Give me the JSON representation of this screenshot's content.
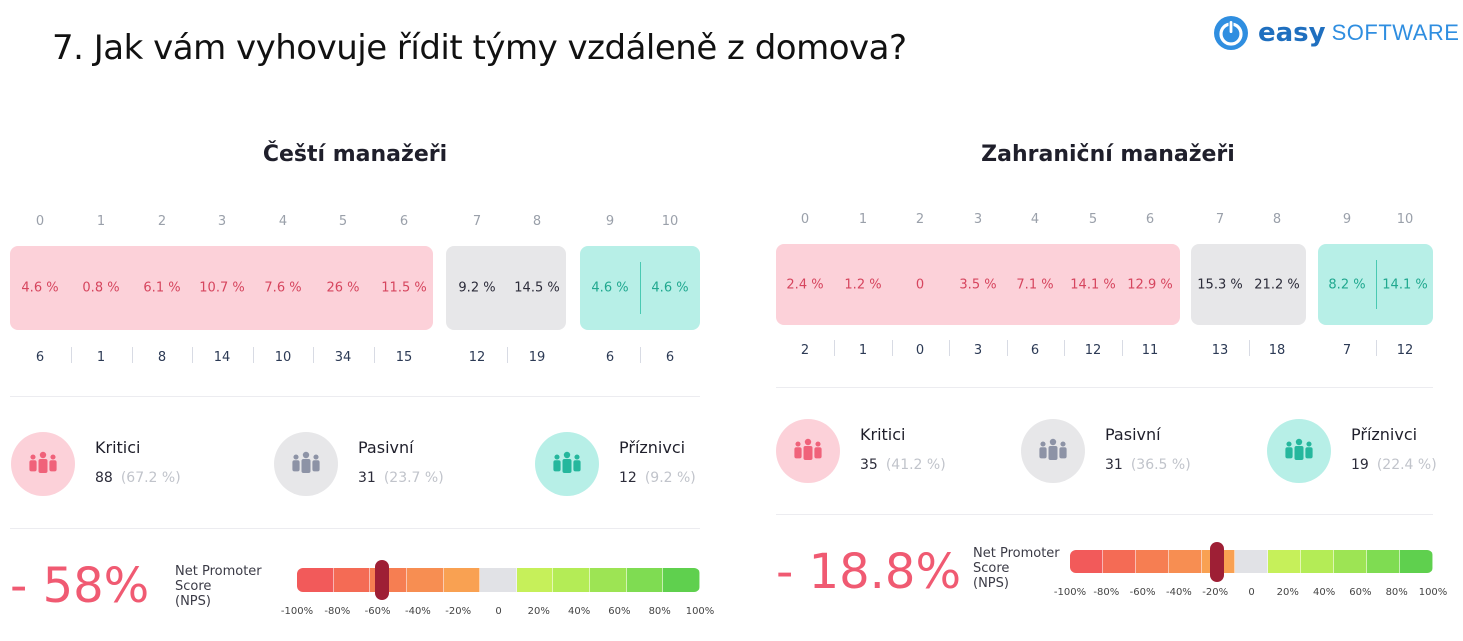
{
  "title": "7. Jak vám vyhovuje řídit týmy vzdáleně z domova?",
  "logo": {
    "word1": "easy",
    "word2": "SOFTWARE",
    "icon": "easy-power-icon"
  },
  "colors": {
    "detractor": "#fcd1d9",
    "passive": "#e7e7e9",
    "promoter": "#b7efe7",
    "nps": "#f05a72",
    "marker": "#9e1f35"
  },
  "gauge": {
    "tick_labels": [
      "-100%",
      "-80%",
      "-60%",
      "-40%",
      "-20%",
      "0",
      "20%",
      "40%",
      "60%",
      "80%",
      "100%"
    ],
    "segment_colors": [
      "#f25a5a",
      "#f46b55",
      "#f67e52",
      "#f78e52",
      "#f9a152",
      "#e1e2e6",
      "#c6f05a",
      "#b4ec56",
      "#9de454",
      "#7fdc52",
      "#5fd04e"
    ]
  },
  "chart_data": [
    {
      "type": "table",
      "title": "Čeští manažeři",
      "scores": [
        "0",
        "1",
        "2",
        "3",
        "4",
        "5",
        "6",
        "7",
        "8",
        "9",
        "10"
      ],
      "percentages": [
        "4.6 %",
        "0.8 %",
        "6.1 %",
        "10.7 %",
        "7.6 %",
        "26 %",
        "11.5 %",
        "9.2 %",
        "14.5 %",
        "4.6 %",
        "4.6 %"
      ],
      "counts": [
        6,
        1,
        8,
        14,
        10,
        34,
        15,
        12,
        19,
        6,
        6
      ],
      "groups": {
        "detractors": {
          "label": "Kritici",
          "count": 88,
          "pct": "(67.2 %)"
        },
        "passives": {
          "label": "Pasivní",
          "count": 31,
          "pct": "(23.7 %)"
        },
        "promoters": {
          "label": "Příznivci",
          "count": 12,
          "pct": "(9.2 %)"
        }
      },
      "nps_display": "- 58%",
      "nps_value": -58,
      "nps_label": [
        "Net Promoter",
        "Score",
        "(NPS)"
      ]
    },
    {
      "type": "table",
      "title": "Zahraniční  manažeři",
      "scores": [
        "0",
        "1",
        "2",
        "3",
        "4",
        "5",
        "6",
        "7",
        "8",
        "9",
        "10"
      ],
      "percentages": [
        "2.4 %",
        "1.2 %",
        "0",
        "3.5 %",
        "7.1 %",
        "14.1 %",
        "12.9 %",
        "15.3 %",
        "21.2 %",
        "8.2 %",
        "14.1 %"
      ],
      "counts": [
        2,
        1,
        0,
        3,
        6,
        12,
        11,
        13,
        18,
        7,
        12
      ],
      "groups": {
        "detractors": {
          "label": "Kritici",
          "count": 35,
          "pct": "(41.2 %)"
        },
        "passives": {
          "label": "Pasivní",
          "count": 31,
          "pct": "(36.5 %)"
        },
        "promoters": {
          "label": "Příznivci",
          "count": 19,
          "pct": "(22.4 %)"
        }
      },
      "nps_display": "- 18.8%",
      "nps_value": -18.8,
      "nps_label": [
        "Net Promoter",
        "Score",
        "(NPS)"
      ]
    }
  ]
}
